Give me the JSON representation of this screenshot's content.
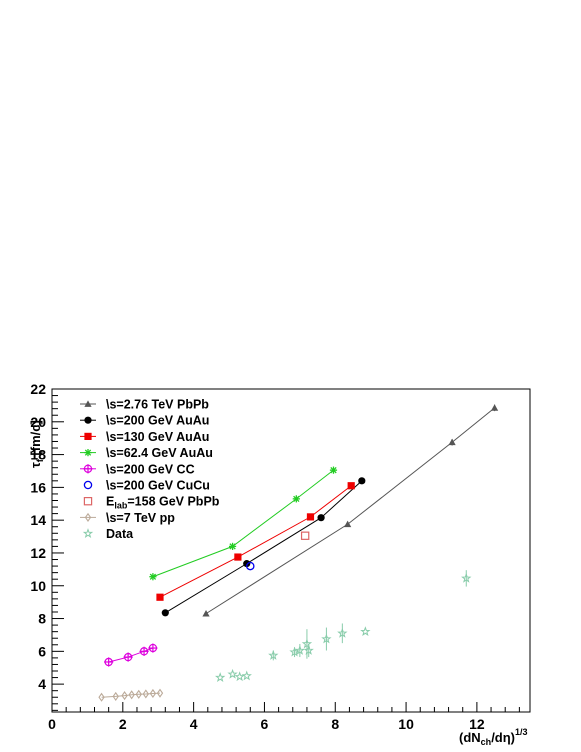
{
  "chart_data": {
    "type": "scatter",
    "xlabel": "(dN",
    "xlabel_sub": "ch",
    "xlabel_rest": "/dη)",
    "xlabel_sup": "1/3",
    "ylabel": "τ",
    "ylabel_sub": "f",
    "ylabel_rest": " [fm/c]",
    "xlim": [
      0,
      13.5
    ],
    "ylim": [
      2.3,
      22
    ],
    "x_ticks": [
      0,
      2,
      4,
      6,
      8,
      10,
      12
    ],
    "y_ticks": [
      4,
      6,
      8,
      10,
      12,
      14,
      16,
      18,
      20,
      22
    ],
    "legend_position": "top-left",
    "series": [
      {
        "name": "\\s=2.76 TeV PbPb",
        "marker": "triangle",
        "color": "#555555",
        "line": true,
        "x": [
          4.35,
          8.35,
          11.3,
          12.5
        ],
        "y": [
          8.3,
          13.75,
          18.75,
          20.85
        ],
        "yerr": [
          0,
          0,
          0.2,
          0.2
        ]
      },
      {
        "name": "\\s=200 GeV AuAu",
        "marker": "circle",
        "color": "#000000",
        "line": true,
        "x": [
          3.2,
          5.5,
          7.6,
          8.75
        ],
        "y": [
          8.35,
          11.35,
          14.15,
          16.4
        ],
        "yerr": [
          0,
          0,
          0,
          0
        ]
      },
      {
        "name": "\\s=130 GeV AuAu",
        "marker": "square",
        "color": "#ee0000",
        "line": true,
        "x": [
          3.05,
          5.25,
          7.3,
          8.45
        ],
        "y": [
          9.3,
          11.75,
          14.2,
          16.1
        ],
        "yerr": [
          0,
          0,
          0,
          0
        ]
      },
      {
        "name": "\\s=62.4 GeV AuAu",
        "marker": "asterisk",
        "color": "#22cc22",
        "line": true,
        "x": [
          2.85,
          5.1,
          6.9,
          7.95
        ],
        "y": [
          10.55,
          12.4,
          15.3,
          17.05
        ],
        "yerr": [
          0,
          0,
          0,
          0
        ]
      },
      {
        "name": "\\s=200 GeV CC",
        "marker": "crosscircle",
        "color": "#dd00dd",
        "line": true,
        "x": [
          1.6,
          2.15,
          2.6,
          2.85
        ],
        "y": [
          5.35,
          5.65,
          6.0,
          6.2
        ],
        "yerr": [
          0,
          0,
          0,
          0
        ]
      },
      {
        "name": "\\s=200 GeV CuCu",
        "marker": "opencircle",
        "color": "#0000ee",
        "line": false,
        "x": [
          5.6
        ],
        "y": [
          11.2
        ],
        "yerr": [
          0
        ]
      },
      {
        "name": "E",
        "name_sub": "lab",
        "name_rest": "=158 GeV PbPb",
        "marker": "opensquare",
        "color": "#dd6666",
        "line": false,
        "x": [
          7.15
        ],
        "y": [
          13.05
        ],
        "yerr": [
          0
        ]
      },
      {
        "name": "\\s=7 TeV pp",
        "marker": "diamond",
        "color": "#bbaa99",
        "line": true,
        "x": [
          1.4,
          1.8,
          2.05,
          2.25,
          2.45,
          2.65,
          2.85,
          3.05
        ],
        "y": [
          3.2,
          3.25,
          3.3,
          3.35,
          3.38,
          3.4,
          3.43,
          3.45
        ],
        "yerr": [
          0,
          0,
          0,
          0,
          0,
          0,
          0,
          0
        ]
      },
      {
        "name": "Data",
        "marker": "star",
        "color": "#88ccaa",
        "line": false,
        "x": [
          4.75,
          5.1,
          5.3,
          5.5,
          6.25,
          6.85,
          7.0,
          7.2,
          7.25,
          7.75,
          8.2,
          8.85,
          11.7
        ],
        "y": [
          4.4,
          4.6,
          4.45,
          4.5,
          5.75,
          5.95,
          6.05,
          6.45,
          6.05,
          6.75,
          7.1,
          7.2,
          10.45
        ],
        "yerr": [
          0,
          0,
          0,
          0,
          0.3,
          0.3,
          0.4,
          0.9,
          0.4,
          0.7,
          0.6,
          0,
          0.5
        ]
      }
    ]
  }
}
